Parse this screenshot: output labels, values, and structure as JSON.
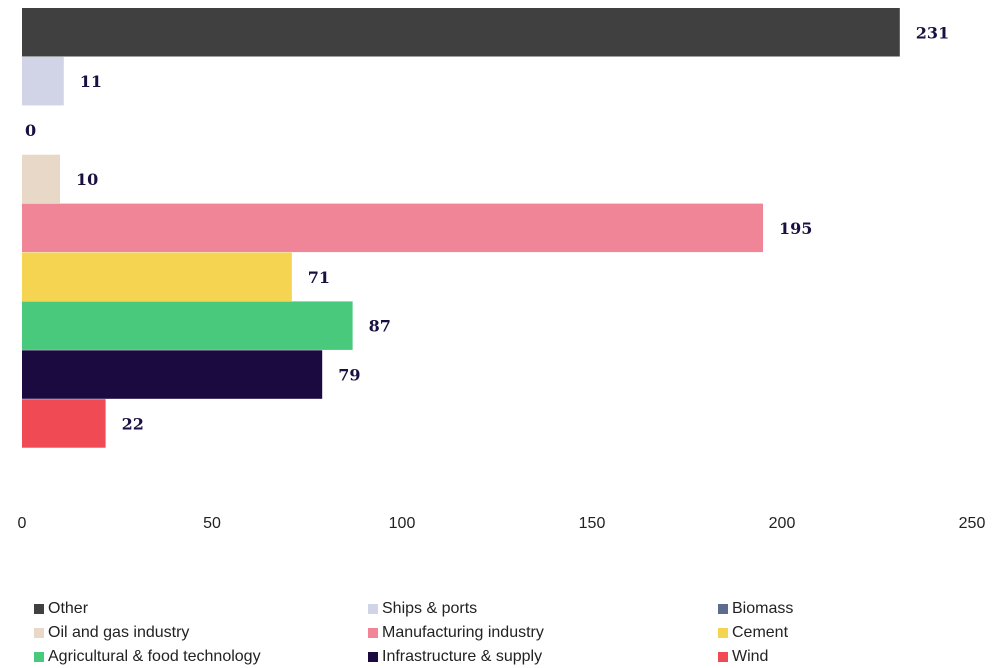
{
  "chart_data": {
    "type": "bar",
    "orientation": "horizontal",
    "categories": [
      "Other",
      "Ships & ports",
      "Biomass",
      "Oil and gas industry",
      "Manufacturing industry",
      "Cement",
      "Agricultural & food technology",
      "Infrastructure & supply",
      "Wind"
    ],
    "values": [
      231,
      11,
      0,
      10,
      195,
      71,
      87,
      79,
      22
    ],
    "colors": [
      "#404040",
      "#d0d4e6",
      "#5b6c8f",
      "#e8d8c8",
      "#ef8596",
      "#f4d450",
      "#48c97c",
      "#1a0a40",
      "#f04a54"
    ],
    "xlim": [
      0,
      250
    ],
    "xticks": [
      "0",
      "50",
      "100",
      "150",
      "200",
      "250"
    ],
    "title": "",
    "xlabel": "",
    "ylabel": "",
    "grid": false,
    "legend_position": "bottom"
  }
}
